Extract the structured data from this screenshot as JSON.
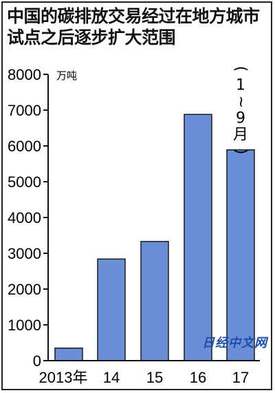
{
  "title": "中国的碳排放交易经过在地方城市试点之后逐步扩大范围",
  "watermark": "日经中文网",
  "chart_data": {
    "type": "bar",
    "title": "中国的碳排放交易经过在地方城市试点之后逐步扩大范围",
    "ylabel": "万吨",
    "xlabel": "",
    "categories": [
      "2013年",
      "14",
      "15",
      "16",
      "17"
    ],
    "values": [
      350,
      2840,
      3330,
      6880,
      5890
    ],
    "ylim": [
      0,
      8000
    ],
    "yticks": [
      0,
      1000,
      2000,
      3000,
      4000,
      5000,
      6000,
      7000,
      8000
    ],
    "annotations": [
      {
        "category": "17",
        "text": "（1~9月）"
      }
    ],
    "bar_color": "#6b8fd6",
    "grid": false,
    "legend": "none"
  }
}
